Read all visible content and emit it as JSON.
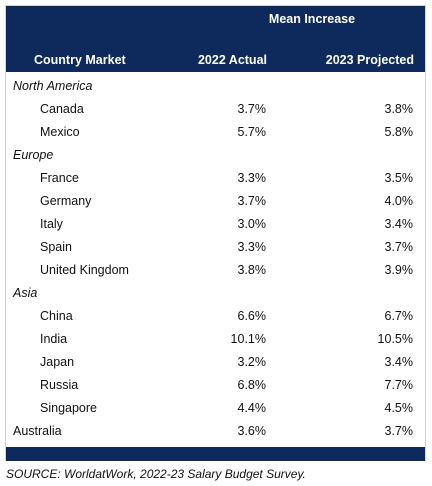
{
  "table": {
    "super_header": "Mean Increase",
    "columns": [
      "Country Market",
      "2022 Actual",
      "2023 Projected"
    ],
    "rows": [
      {
        "type": "group",
        "label": "North America"
      },
      {
        "type": "item",
        "label": "Canada",
        "actual_2022": "3.7%",
        "projected_2023": "3.8%"
      },
      {
        "type": "item",
        "label": "Mexico",
        "actual_2022": "5.7%",
        "projected_2023": "5.8%"
      },
      {
        "type": "group",
        "label": "Europe"
      },
      {
        "type": "item",
        "label": "France",
        "actual_2022": "3.3%",
        "projected_2023": "3.5%"
      },
      {
        "type": "item",
        "label": "Germany",
        "actual_2022": "3.7%",
        "projected_2023": "4.0%"
      },
      {
        "type": "item",
        "label": "Italy",
        "actual_2022": "3.0%",
        "projected_2023": "3.4%"
      },
      {
        "type": "item",
        "label": "Spain",
        "actual_2022": "3.3%",
        "projected_2023": "3.7%"
      },
      {
        "type": "item",
        "label": "United Kingdom",
        "actual_2022": "3.8%",
        "projected_2023": "3.9%"
      },
      {
        "type": "group",
        "label": "Asia"
      },
      {
        "type": "item",
        "label": "China",
        "actual_2022": "6.6%",
        "projected_2023": "6.7%"
      },
      {
        "type": "item",
        "label": "India",
        "actual_2022": "10.1%",
        "projected_2023": "10.5%"
      },
      {
        "type": "item",
        "label": "Japan",
        "actual_2022": "3.2%",
        "projected_2023": "3.4%"
      },
      {
        "type": "item",
        "label": "Russia",
        "actual_2022": "6.8%",
        "projected_2023": "7.7%"
      },
      {
        "type": "item",
        "label": "Singapore",
        "actual_2022": "4.4%",
        "projected_2023": "4.5%"
      },
      {
        "type": "flat",
        "label": "Australia",
        "actual_2022": "3.6%",
        "projected_2023": "3.7%"
      }
    ]
  },
  "source": "SOURCE: WorldatWork, 2022-23 Salary Budget Survey.",
  "colors": {
    "header_bg": "#0e2a5c",
    "header_text": "#ffffff"
  }
}
